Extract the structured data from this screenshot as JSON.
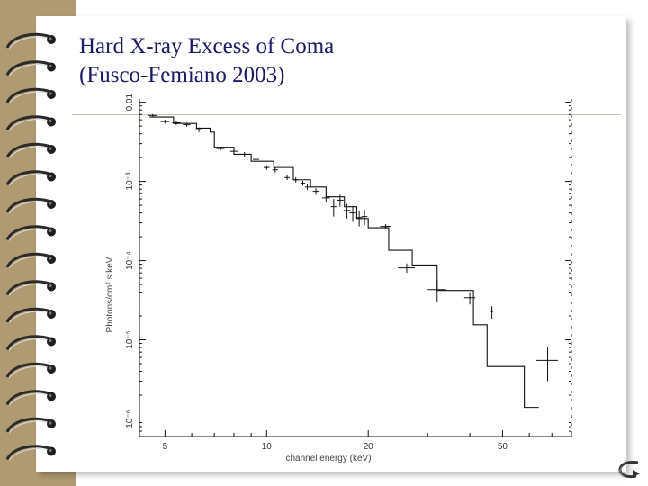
{
  "slide": {
    "title_line1": "Hard X-ray Excess of Coma",
    "title_line2": "(Fusco-Femiano 2003)"
  },
  "colors": {
    "title": "#1a1a66",
    "binder": "#b09a72",
    "plot_ink": "#111111"
  },
  "icons": {
    "binder_rings": "spiral-ring-icon",
    "navigation": "return-arrow-icon"
  },
  "chart_data": {
    "type": "line",
    "xlabel": "channel energy (keV)",
    "ylabel": "Photons/cm² s keV",
    "xscale": "log",
    "yscale": "log",
    "xlim": [
      4.2,
      80
    ],
    "ylim": [
      6e-07,
      0.011
    ],
    "x_ticks": [
      5,
      10,
      20,
      50
    ],
    "x_tick_labels": [
      "5",
      "10",
      "20",
      "50"
    ],
    "y_ticks": [
      0.01,
      0.001,
      0.0001,
      1e-05,
      1e-06
    ],
    "y_tick_labels": [
      "0.01",
      "10⁻³",
      "10⁻⁴",
      "10⁻⁵",
      "10⁻⁶"
    ],
    "grid": false,
    "model_step": [
      [
        4.5,
        0.0065
      ],
      [
        5.3,
        0.0054
      ],
      [
        6.2,
        0.0047
      ],
      [
        6.8,
        0.0042
      ],
      [
        7.0,
        0.0027
      ],
      [
        8.0,
        0.0022
      ],
      [
        9.0,
        0.0018
      ],
      [
        10.5,
        0.0015
      ],
      [
        12.0,
        0.00105
      ],
      [
        13.5,
        0.00085
      ],
      [
        15.0,
        0.00064
      ],
      [
        17.0,
        0.00048
      ],
      [
        18.5,
        0.00034
      ],
      [
        20.0,
        0.00026
      ],
      [
        23.0,
        0.000135
      ],
      [
        27.0,
        8.8e-05
      ],
      [
        32.0,
        4.2e-05
      ],
      [
        41.0,
        1.55e-05
      ],
      [
        45.0,
        4.6e-06
      ],
      [
        58.0,
        1.4e-06
      ],
      [
        64.0,
        1.4e-06
      ]
    ],
    "data_points": [
      {
        "x": 4.6,
        "y": 0.0068,
        "xerr": 0.15,
        "yerr": 0.0003
      },
      {
        "x": 5.0,
        "y": 0.0057,
        "xerr": 0.15,
        "yerr": 0.0003
      },
      {
        "x": 5.4,
        "y": 0.0055,
        "xerr": 0.15,
        "yerr": 0.0003
      },
      {
        "x": 5.8,
        "y": 0.0052,
        "xerr": 0.15,
        "yerr": 0.0003
      },
      {
        "x": 6.3,
        "y": 0.0045,
        "xerr": 0.15,
        "yerr": 0.0003
      },
      {
        "x": 7.3,
        "y": 0.0026,
        "xerr": 0.2,
        "yerr": 0.00015
      },
      {
        "x": 8.0,
        "y": 0.0024,
        "xerr": 0.2,
        "yerr": 0.00015
      },
      {
        "x": 8.6,
        "y": 0.0022,
        "xerr": 0.2,
        "yerr": 0.00015
      },
      {
        "x": 9.3,
        "y": 0.0019,
        "xerr": 0.2,
        "yerr": 0.0001
      },
      {
        "x": 10.0,
        "y": 0.0015,
        "xerr": 0.2,
        "yerr": 0.0001
      },
      {
        "x": 10.6,
        "y": 0.0014,
        "xerr": 0.2,
        "yerr": 0.0001
      },
      {
        "x": 11.5,
        "y": 0.00112,
        "xerr": 0.2,
        "yerr": 8e-05
      },
      {
        "x": 12.2,
        "y": 0.00105,
        "xerr": 0.2,
        "yerr": 8e-05
      },
      {
        "x": 12.8,
        "y": 0.00095,
        "xerr": 0.2,
        "yerr": 7e-05
      },
      {
        "x": 13.2,
        "y": 0.00085,
        "xerr": 0.2,
        "yerr": 7e-05
      },
      {
        "x": 14.0,
        "y": 0.00075,
        "xerr": 0.3,
        "yerr": 7e-05
      },
      {
        "x": 15.0,
        "y": 0.00062,
        "xerr": 0.4,
        "yerr": 7e-05
      },
      {
        "x": 15.8,
        "y": 0.00048,
        "xerr": 0.3,
        "yerr": 0.00012
      },
      {
        "x": 16.5,
        "y": 0.00058,
        "xerr": 0.4,
        "yerr": 0.0001
      },
      {
        "x": 17.3,
        "y": 0.00043,
        "xerr": 0.4,
        "yerr": 9e-05
      },
      {
        "x": 18.0,
        "y": 0.0004,
        "xerr": 0.4,
        "yerr": 9e-05
      },
      {
        "x": 18.8,
        "y": 0.00035,
        "xerr": 0.4,
        "yerr": 8e-05
      },
      {
        "x": 19.5,
        "y": 0.00036,
        "xerr": 0.4,
        "yerr": 8e-05
      },
      {
        "x": 22.5,
        "y": 0.00027,
        "xerr": 0.8,
        "yerr": 2e-05
      },
      {
        "x": 26.0,
        "y": 8.1e-05,
        "xerr": 1.5,
        "yerr": 1.1e-05
      },
      {
        "x": 32.0,
        "y": 4.3e-05,
        "xerr": 2.0,
        "yerr": 1.3e-05
      },
      {
        "x": 40.0,
        "y": 3.4e-05,
        "xerr": 1.5,
        "yerr": 6e-06
      },
      {
        "x": 46.5,
        "y": 2.25e-05,
        "xerr": 0.3,
        "yerr": 4e-06
      },
      {
        "x": 68.0,
        "y": 5.5e-06,
        "xerr": 5.0,
        "yerr": 2.5e-06
      }
    ]
  }
}
